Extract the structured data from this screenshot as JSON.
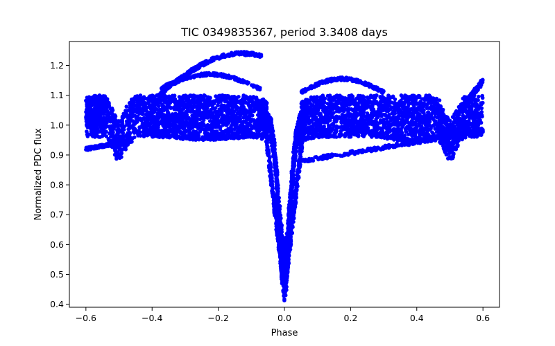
{
  "chart_data": {
    "type": "scatter",
    "title": "TIC 0349835367, period 3.3408 days",
    "xlabel": "Phase",
    "ylabel": "Normalized PDC flux",
    "xlim": [
      -0.65,
      0.65
    ],
    "ylim": [
      0.39,
      1.28
    ],
    "xticks": [
      -0.6,
      -0.4,
      -0.2,
      0.0,
      0.2,
      0.4,
      0.6
    ],
    "xtick_labels": [
      "−0.6",
      "−0.4",
      "−0.2",
      "0.0",
      "0.2",
      "0.4",
      "0.6"
    ],
    "yticks": [
      0.4,
      0.5,
      0.6,
      0.7,
      0.8,
      0.9,
      1.0,
      1.1,
      1.2
    ],
    "ytick_labels": [
      "0.4",
      "0.5",
      "0.6",
      "0.7",
      "0.8",
      "0.9",
      "1.0",
      "1.1",
      "1.2"
    ],
    "grid": false,
    "marker_color": "#0000ff",
    "x_range": [
      -0.6,
      0.6
    ],
    "baseline_flux": 1.03,
    "band_flux_range": [
      0.96,
      1.1
    ],
    "upper_arc_max_flux": 1.24,
    "dip_center_phase": 0.0,
    "dip_min_flux": 0.44,
    "secondary_dip_phases": [
      -0.5,
      0.5
    ],
    "secondary_dip_flux": 0.89,
    "sample_curve": {
      "x": [
        -0.6,
        -0.55,
        -0.5,
        -0.45,
        -0.4,
        -0.3,
        -0.2,
        -0.1,
        -0.06,
        -0.04,
        -0.02,
        -0.01,
        0.0,
        0.01,
        0.02,
        0.04,
        0.06,
        0.1,
        0.2,
        0.3,
        0.4,
        0.45,
        0.5,
        0.55,
        0.6
      ],
      "y": [
        1.04,
        1.03,
        0.97,
        1.0,
        1.03,
        1.04,
        1.04,
        1.03,
        1.0,
        0.86,
        0.7,
        0.62,
        0.55,
        0.62,
        0.7,
        0.86,
        1.0,
        1.03,
        1.04,
        1.04,
        1.03,
        1.0,
        0.97,
        1.03,
        1.04
      ]
    }
  }
}
